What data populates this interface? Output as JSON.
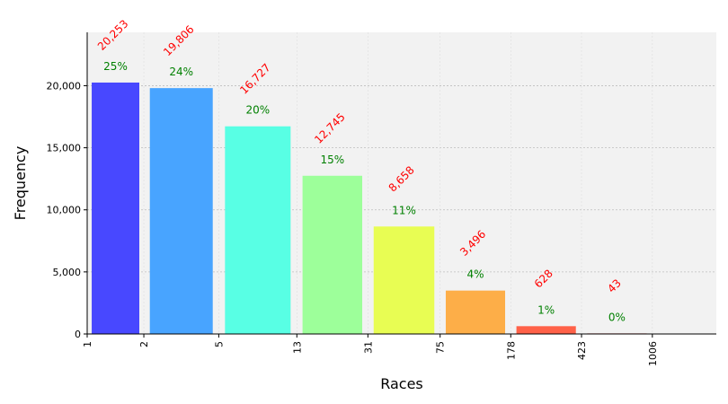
{
  "chart_data": {
    "type": "bar",
    "title": "",
    "xlabel": "Races",
    "ylabel": "Frequency",
    "ylim": [
      0,
      24300
    ],
    "yticks": [
      0,
      5000,
      10000,
      15000,
      20000
    ],
    "ytick_labels": [
      "0",
      "5,000",
      "10,000",
      "15,000",
      "20,000"
    ],
    "x_scale": "log",
    "xlim": [
      1,
      2200
    ],
    "xticks": [
      1,
      2,
      5,
      13,
      31,
      75,
      178,
      423,
      1006
    ],
    "xtick_labels": [
      "1",
      "2",
      "5",
      "13",
      "31",
      "75",
      "178",
      "423",
      "1006"
    ],
    "grid": true,
    "bars": [
      {
        "x_start": 1,
        "x_end": 2,
        "value": 20253,
        "count_label": "20,253",
        "pct_label": "25%",
        "color": "#4848ff"
      },
      {
        "x_start": 2,
        "x_end": 5,
        "value": 19806,
        "count_label": "19,806",
        "pct_label": "24%",
        "color": "#48a4ff"
      },
      {
        "x_start": 5,
        "x_end": 13,
        "value": 16727,
        "count_label": "16,727",
        "pct_label": "20%",
        "color": "#58ffe4"
      },
      {
        "x_start": 13,
        "x_end": 31,
        "value": 12745,
        "count_label": "12,745",
        "pct_label": "15%",
        "color": "#9dff9a"
      },
      {
        "x_start": 31,
        "x_end": 75,
        "value": 8658,
        "count_label": "8,658",
        "pct_label": "11%",
        "color": "#e8fd53"
      },
      {
        "x_start": 75,
        "x_end": 178,
        "value": 3496,
        "count_label": "3,496",
        "pct_label": "4%",
        "color": "#fdae48"
      },
      {
        "x_start": 178,
        "x_end": 423,
        "value": 628,
        "count_label": "628",
        "pct_label": "1%",
        "color": "#ff6148"
      },
      {
        "x_start": 423,
        "x_end": 1006,
        "value": 43,
        "count_label": "43",
        "pct_label": "0%",
        "color": "#d42a20"
      }
    ]
  }
}
